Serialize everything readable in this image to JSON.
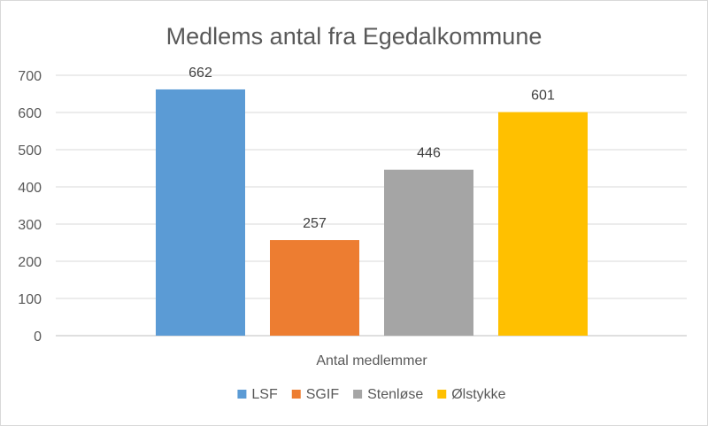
{
  "chart_data": {
    "type": "bar",
    "title": "Medlems antal fra Egedalkommune",
    "categories": [
      "Antal medlemmer"
    ],
    "xlabel": "Antal medlemmer",
    "ylabel": "",
    "ylim": [
      0,
      700
    ],
    "yticks": [
      0,
      100,
      200,
      300,
      400,
      500,
      600,
      700
    ],
    "grid": true,
    "legend_position": "bottom",
    "series": [
      {
        "name": "LSF",
        "values": [
          662
        ],
        "color": "#5B9BD5"
      },
      {
        "name": "SGIF",
        "values": [
          257
        ],
        "color": "#ED7D31"
      },
      {
        "name": "Stenløse",
        "values": [
          446
        ],
        "color": "#A5A5A5"
      },
      {
        "name": "Ølstykke",
        "values": [
          601
        ],
        "color": "#FFC000"
      }
    ]
  }
}
